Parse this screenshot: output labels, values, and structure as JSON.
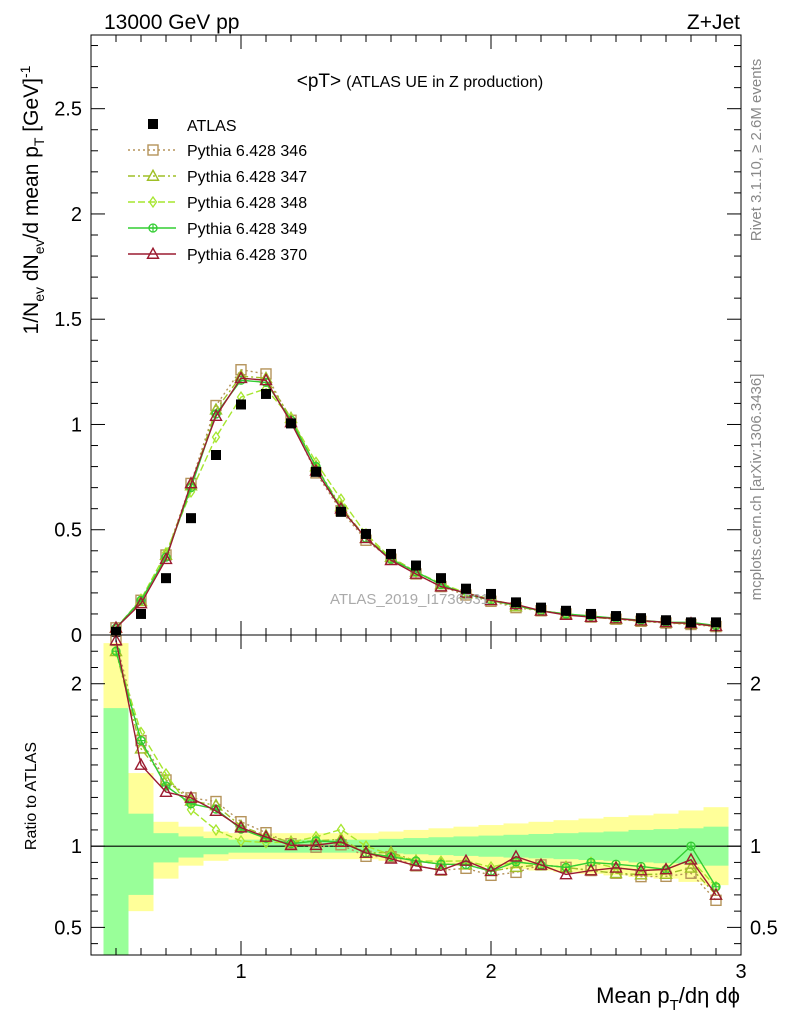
{
  "header": {
    "left": "13000 GeV pp",
    "right": "Z+Jet"
  },
  "side_text": {
    "rivet": "Rivet 3.1.10, ≥ 2.6M events",
    "mcplots": "mcplots.cern.ch [arXiv:1306.3436]"
  },
  "chart_data": {
    "type": "line",
    "title_main": "<pT>",
    "title_sub": "(ATLAS UE in Z production)",
    "watermark": "ATLAS_2019_I1736531",
    "ylabel": "1/N_ev dN_ev/d mean p_T [GeV]^-1",
    "ylabel_parts": {
      "a": "1/N",
      "a_sub": "ev",
      "b": " dN",
      "b_sub": "ev",
      "c": "/d mean p",
      "c_sub": "T",
      "d": " [GeV]",
      "d_sup": "-1"
    },
    "xlabel_parts": {
      "a": "Mean p",
      "a_sub": "T",
      "b": "/dη dϕ"
    },
    "ratio_ylabel": "Ratio to ATLAS",
    "xlim": [
      0.4,
      3.0
    ],
    "ylim": [
      0,
      2.85
    ],
    "ratio_ylim": [
      0.33,
      2.3
    ],
    "x_ticks": [
      "1",
      "2",
      "3"
    ],
    "y_ticks": [
      "0",
      "0.5",
      "1",
      "1.5",
      "2",
      "2.5"
    ],
    "ratio_y_ticks": [
      "0.5",
      "1",
      "2"
    ],
    "x": [
      0.5,
      0.6,
      0.7,
      0.8,
      0.9,
      1.0,
      1.1,
      1.2,
      1.3,
      1.4,
      1.5,
      1.6,
      1.7,
      1.8,
      1.9,
      2.0,
      2.1,
      2.2,
      2.3,
      2.4,
      2.5,
      2.6,
      2.7,
      2.8,
      2.9
    ],
    "data": {
      "name": "ATLAS",
      "values": [
        0.015,
        0.1,
        0.27,
        0.555,
        0.855,
        1.095,
        1.145,
        1.005,
        0.775,
        0.585,
        0.48,
        0.385,
        0.33,
        0.27,
        0.22,
        0.195,
        0.155,
        0.13,
        0.115,
        0.1,
        0.09,
        0.08,
        0.07,
        0.06,
        0.06
      ]
    },
    "series": [
      {
        "name": "Pythia 6.428 346",
        "color": "#b5935a",
        "marker": "square",
        "dash": "2,3",
        "values": [
          0.034,
          0.165,
          0.38,
          0.72,
          1.09,
          1.26,
          1.24,
          1.02,
          0.77,
          0.59,
          0.45,
          0.36,
          0.29,
          0.23,
          0.19,
          0.16,
          0.13,
          0.115,
          0.1,
          0.085,
          0.075,
          0.065,
          0.057,
          0.05,
          0.04
        ]
      },
      {
        "name": "Pythia 6.428 347",
        "color": "#9fbf26",
        "marker": "triangle",
        "dash": "7,3,2,3",
        "values": [
          0.033,
          0.16,
          0.38,
          0.71,
          1.07,
          1.23,
          1.22,
          1.03,
          0.8,
          0.61,
          0.46,
          0.37,
          0.3,
          0.24,
          0.195,
          0.165,
          0.135,
          0.115,
          0.1,
          0.085,
          0.075,
          0.066,
          0.058,
          0.052,
          0.042
        ]
      },
      {
        "name": "Pythia 6.428 348",
        "color": "#a6e62e",
        "marker": "diamond",
        "dash": "7,3",
        "values": [
          0.033,
          0.17,
          0.39,
          0.68,
          0.94,
          1.13,
          1.17,
          1.03,
          0.82,
          0.645,
          0.48,
          0.365,
          0.3,
          0.245,
          0.2,
          0.17,
          0.14,
          0.115,
          0.1,
          0.09,
          0.078,
          0.068,
          0.06,
          0.055,
          0.045
        ]
      },
      {
        "name": "Pythia 6.428 349",
        "color": "#32cd32",
        "marker": "circle",
        "dash": "",
        "values": [
          0.033,
          0.165,
          0.37,
          0.7,
          1.05,
          1.21,
          1.2,
          1.02,
          0.8,
          0.6,
          0.46,
          0.36,
          0.3,
          0.24,
          0.195,
          0.165,
          0.14,
          0.115,
          0.1,
          0.09,
          0.08,
          0.07,
          0.06,
          0.06,
          0.045
        ]
      },
      {
        "name": "Pythia 6.428 370",
        "color": "#9b1b30",
        "marker": "triangle",
        "dash": "",
        "values": [
          0.034,
          0.15,
          0.36,
          0.72,
          1.04,
          1.22,
          1.21,
          1.01,
          0.78,
          0.6,
          0.46,
          0.355,
          0.29,
          0.23,
          0.2,
          0.165,
          0.145,
          0.115,
          0.095,
          0.085,
          0.078,
          0.068,
          0.06,
          0.055,
          0.042
        ]
      }
    ],
    "ratio_band_green": [
      [
        0.33,
        1.85
      ],
      [
        0.7,
        1.2
      ],
      [
        0.9,
        1.08
      ],
      [
        0.93,
        1.06
      ],
      [
        0.95,
        1.05
      ],
      [
        0.96,
        1.04
      ],
      [
        0.96,
        1.04
      ],
      [
        0.96,
        1.04
      ],
      [
        0.96,
        1.04
      ],
      [
        0.96,
        1.04
      ],
      [
        0.96,
        1.04
      ],
      [
        0.955,
        1.045
      ],
      [
        0.95,
        1.05
      ],
      [
        0.945,
        1.055
      ],
      [
        0.94,
        1.06
      ],
      [
        0.935,
        1.065
      ],
      [
        0.93,
        1.07
      ],
      [
        0.925,
        1.075
      ],
      [
        0.92,
        1.08
      ],
      [
        0.915,
        1.085
      ],
      [
        0.91,
        1.09
      ],
      [
        0.9,
        1.1
      ],
      [
        0.895,
        1.105
      ],
      [
        0.89,
        1.11
      ],
      [
        0.88,
        1.12
      ]
    ],
    "ratio_band_yellow": [
      [
        0.33,
        2.25
      ],
      [
        0.6,
        1.45
      ],
      [
        0.8,
        1.15
      ],
      [
        0.88,
        1.12
      ],
      [
        0.91,
        1.09
      ],
      [
        0.92,
        1.08
      ],
      [
        0.92,
        1.08
      ],
      [
        0.92,
        1.08
      ],
      [
        0.92,
        1.08
      ],
      [
        0.92,
        1.08
      ],
      [
        0.92,
        1.08
      ],
      [
        0.91,
        1.09
      ],
      [
        0.9,
        1.1
      ],
      [
        0.89,
        1.11
      ],
      [
        0.88,
        1.12
      ],
      [
        0.87,
        1.13
      ],
      [
        0.86,
        1.14
      ],
      [
        0.85,
        1.15
      ],
      [
        0.84,
        1.16
      ],
      [
        0.83,
        1.17
      ],
      [
        0.82,
        1.18
      ],
      [
        0.81,
        1.19
      ],
      [
        0.8,
        1.2
      ],
      [
        0.78,
        1.22
      ],
      [
        0.76,
        1.24
      ]
    ]
  }
}
